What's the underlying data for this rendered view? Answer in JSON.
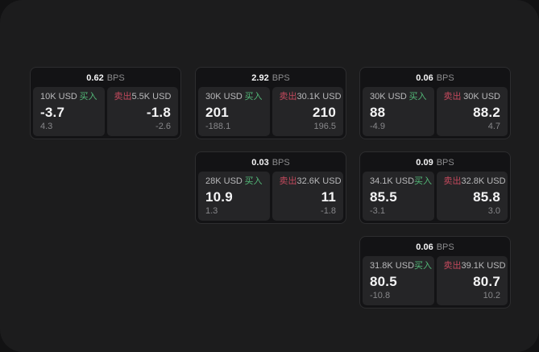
{
  "labels": {
    "bps_unit": "BPS",
    "buy": "买入",
    "sell": "卖出"
  },
  "colors": {
    "buy_accent": "#53b878",
    "sell_accent": "#c3495d",
    "panel_background": "#1c1c1d",
    "card_background": "#131315",
    "tile_background": "#252527",
    "outer_background": "#121213"
  },
  "cards": [
    {
      "bps": "0.62",
      "buy": {
        "amount": "10K USD",
        "value": "-3.7",
        "sub": "4.3"
      },
      "sell": {
        "amount": "5.5K USD",
        "value": "-1.8",
        "sub": "-2.6"
      }
    },
    {
      "bps": "2.92",
      "buy": {
        "amount": "30K USD",
        "value": "201",
        "sub": "-188.1"
      },
      "sell": {
        "amount": "30.1K USD",
        "value": "210",
        "sub": "196.5"
      }
    },
    {
      "bps": "0.06",
      "buy": {
        "amount": "30K USD",
        "value": "88",
        "sub": "-4.9"
      },
      "sell": {
        "amount": "30K USD",
        "value": "88.2",
        "sub": "4.7"
      }
    },
    {
      "bps": "0.03",
      "buy": {
        "amount": "28K USD",
        "value": "10.9",
        "sub": "1.3"
      },
      "sell": {
        "amount": "32.6K USD",
        "value": "11",
        "sub": "-1.8"
      }
    },
    {
      "bps": "0.09",
      "buy": {
        "amount": "34.1K USD",
        "value": "85.5",
        "sub": "-3.1"
      },
      "sell": {
        "amount": "32.8K USD",
        "value": "85.8",
        "sub": "3.0"
      }
    },
    {
      "bps": "0.06",
      "buy": {
        "amount": "31.8K USD",
        "value": "80.5",
        "sub": "-10.8"
      },
      "sell": {
        "amount": "39.1K USD",
        "value": "80.7",
        "sub": "10.2"
      }
    }
  ]
}
